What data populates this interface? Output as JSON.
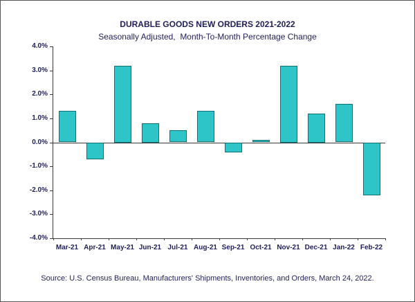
{
  "chart_data": {
    "type": "bar",
    "title": "DURABLE GOODS NEW ORDERS 2021-2022",
    "subtitle": "Seasonally Adjusted,  Month-To-Month Percentage Change",
    "source": "Source: U.S. Census Bureau, Manufacturers' Shipments, Inventories, and Orders, March 24, 2022.",
    "categories": [
      "Mar-21",
      "Apr-21",
      "May-21",
      "Jun-21",
      "Jul-21",
      "Aug-21",
      "Sep-21",
      "Oct-21",
      "Nov-21",
      "Dec-21",
      "Jan-22",
      "Feb-22"
    ],
    "values": [
      1.3,
      -0.7,
      3.2,
      0.8,
      0.5,
      1.3,
      -0.4,
      0.1,
      3.2,
      1.2,
      1.6,
      -2.2
    ],
    "ylabel": "",
    "xlabel": "",
    "ylim": [
      -4,
      4
    ],
    "ytick_step": 1,
    "ytick_labels": [
      "4.0%",
      "3.0%",
      "2.0%",
      "1.0%",
      "0.0%",
      "-1.0%",
      "-2.0%",
      "-3.0%",
      "-4.0%"
    ],
    "bar_color": "#2ec5c9",
    "bar_border_color": "#0e6f73",
    "grid": false,
    "legend": false
  }
}
